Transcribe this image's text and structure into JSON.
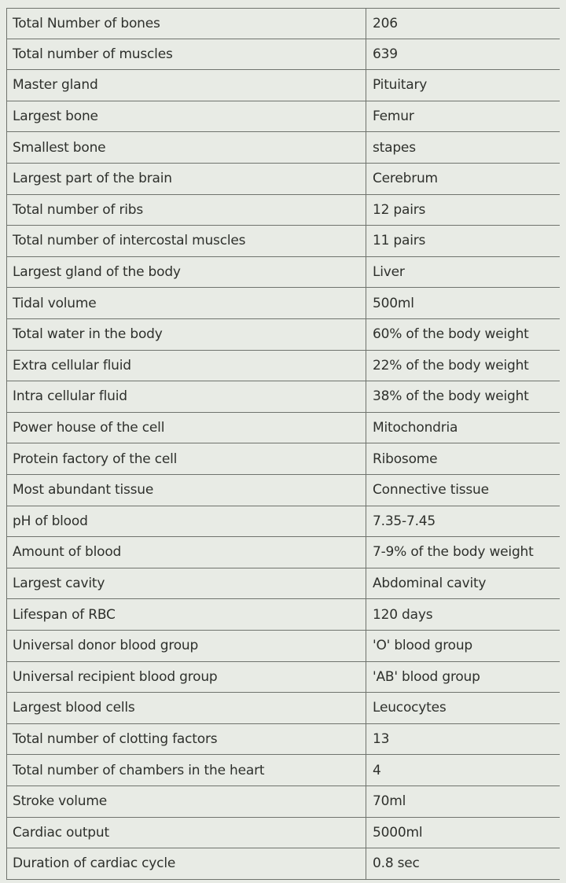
{
  "table": {
    "rows": [
      [
        "Total Number of bones",
        "206"
      ],
      [
        "Total number of muscles",
        "639"
      ],
      [
        "Master gland",
        "Pituitary"
      ],
      [
        "Largest bone",
        "Femur"
      ],
      [
        "Smallest bone",
        "stapes"
      ],
      [
        "Largest part of the brain",
        "Cerebrum"
      ],
      [
        "Total number of ribs",
        "12 pairs"
      ],
      [
        "Total number of intercostal muscles",
        "11 pairs"
      ],
      [
        "Largest gland of the body",
        "Liver"
      ],
      [
        "Tidal volume",
        "500ml"
      ],
      [
        "Total water in the body",
        "60% of the body weight"
      ],
      [
        "Extra cellular fluid",
        "22% of the body weight"
      ],
      [
        "Intra cellular fluid",
        "38% of the body weight"
      ],
      [
        "Power house of the cell",
        "Mitochondria"
      ],
      [
        "Protein factory of the cell",
        "Ribosome"
      ],
      [
        "Most abundant tissue",
        "Connective tissue"
      ],
      [
        "pH of blood",
        "7.35-7.45"
      ],
      [
        "Amount of blood",
        "7-9% of the body weight"
      ],
      [
        "Largest cavity",
        "Abdominal cavity"
      ],
      [
        "Lifespan of RBC",
        "120 days"
      ],
      [
        "Universal donor blood group",
        "'O' blood group"
      ],
      [
        "Universal recipient blood group",
        "'AB'  blood group"
      ],
      [
        "Largest blood cells",
        "Leucocytes"
      ],
      [
        "Total number of clotting factors",
        "13"
      ],
      [
        "Total number of chambers in the heart",
        "4"
      ],
      [
        "Stroke volume",
        "70ml"
      ],
      [
        "Cardiac output",
        "5000ml"
      ],
      [
        "Duration of cardiac cycle",
        "0.8 sec"
      ]
    ]
  }
}
